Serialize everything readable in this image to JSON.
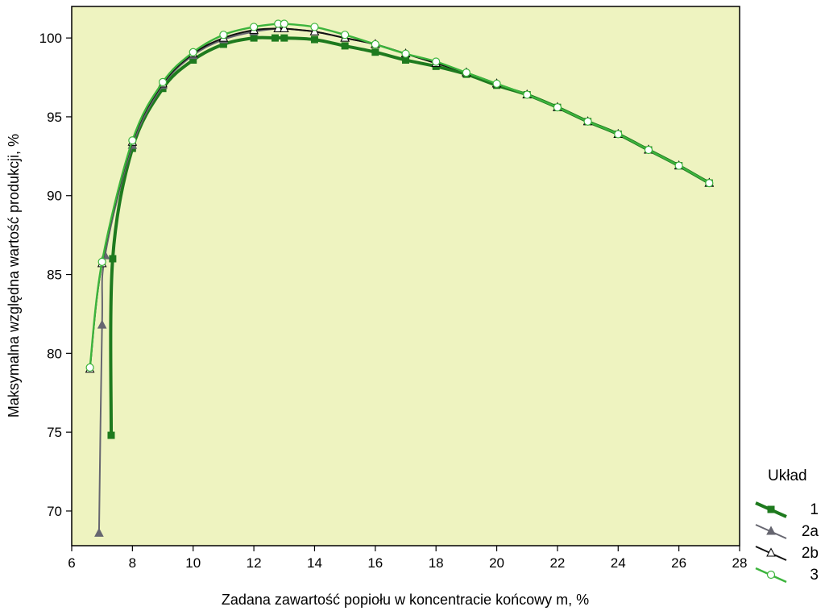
{
  "chart_data": {
    "type": "line",
    "xlabel": "Zadana zawartość popiołu w koncentracie końcowy m,  %",
    "ylabel": "Maksymalna względna wartość produkcji,  %",
    "xlim": [
      6,
      28
    ],
    "ylim": [
      67.8,
      102
    ],
    "x_ticks": [
      6,
      8,
      10,
      12,
      14,
      16,
      18,
      20,
      22,
      24,
      26,
      28
    ],
    "y_ticks": [
      70,
      75,
      80,
      85,
      90,
      95,
      100
    ],
    "grid": false,
    "background_color": "#eef3c0",
    "legend": {
      "title": "Układ",
      "placement": "right"
    },
    "series": [
      {
        "name": "1",
        "color": "#1e7a1e",
        "marker": "square",
        "x": [
          7.3,
          7.35,
          8,
          9,
          10,
          11,
          12,
          12.7,
          13,
          14,
          15,
          16,
          17,
          18,
          19,
          20,
          21,
          22,
          23,
          24,
          25,
          26,
          27
        ],
        "y": [
          74.8,
          86.0,
          93.0,
          96.8,
          98.6,
          99.6,
          100.0,
          100.0,
          100.0,
          99.9,
          99.5,
          99.1,
          98.6,
          98.2,
          97.7,
          97.0,
          96.4,
          95.6,
          94.7,
          93.9,
          92.9,
          91.9,
          90.8
        ]
      },
      {
        "name": "2a",
        "color": "#666670",
        "marker": "triangle-filled",
        "x": [
          6.9,
          7.0,
          7.1,
          8,
          9,
          10,
          11,
          12,
          12.8,
          13,
          14,
          15,
          16,
          17,
          18,
          19,
          20,
          21,
          22,
          23,
          24,
          25,
          26,
          27
        ],
        "y": [
          68.6,
          81.8,
          86.2,
          93.2,
          97.0,
          98.9,
          99.9,
          100.4,
          100.6,
          100.6,
          100.4,
          100.0,
          99.6,
          99.0,
          98.4,
          97.8,
          97.1,
          96.4,
          95.6,
          94.7,
          93.9,
          92.9,
          91.9,
          90.8
        ]
      },
      {
        "name": "2b",
        "color": "#111111",
        "marker": "triangle-open",
        "x": [
          6.6,
          7.0,
          8,
          9,
          10,
          11,
          12,
          12.8,
          13,
          14,
          15,
          16,
          17,
          18,
          19,
          20,
          21,
          22,
          23,
          24,
          25,
          26,
          27
        ],
        "y": [
          79.0,
          85.7,
          93.4,
          97.1,
          99.0,
          100.0,
          100.5,
          100.6,
          100.6,
          100.4,
          100.0,
          99.6,
          99.0,
          98.4,
          97.8,
          97.1,
          96.4,
          95.6,
          94.7,
          93.9,
          92.9,
          91.9,
          90.8
        ]
      },
      {
        "name": "3",
        "color": "#3cb43c",
        "marker": "circle-open",
        "x": [
          6.6,
          7.0,
          8,
          9,
          10,
          11,
          12,
          12.8,
          13,
          14,
          15,
          16,
          17,
          18,
          19,
          20,
          21,
          22,
          23,
          24,
          25,
          26,
          27
        ],
        "y": [
          79.1,
          85.8,
          93.5,
          97.2,
          99.1,
          100.2,
          100.7,
          100.9,
          100.9,
          100.7,
          100.2,
          99.6,
          99.0,
          98.5,
          97.8,
          97.1,
          96.4,
          95.6,
          94.7,
          93.9,
          92.9,
          91.9,
          90.8
        ]
      }
    ]
  }
}
